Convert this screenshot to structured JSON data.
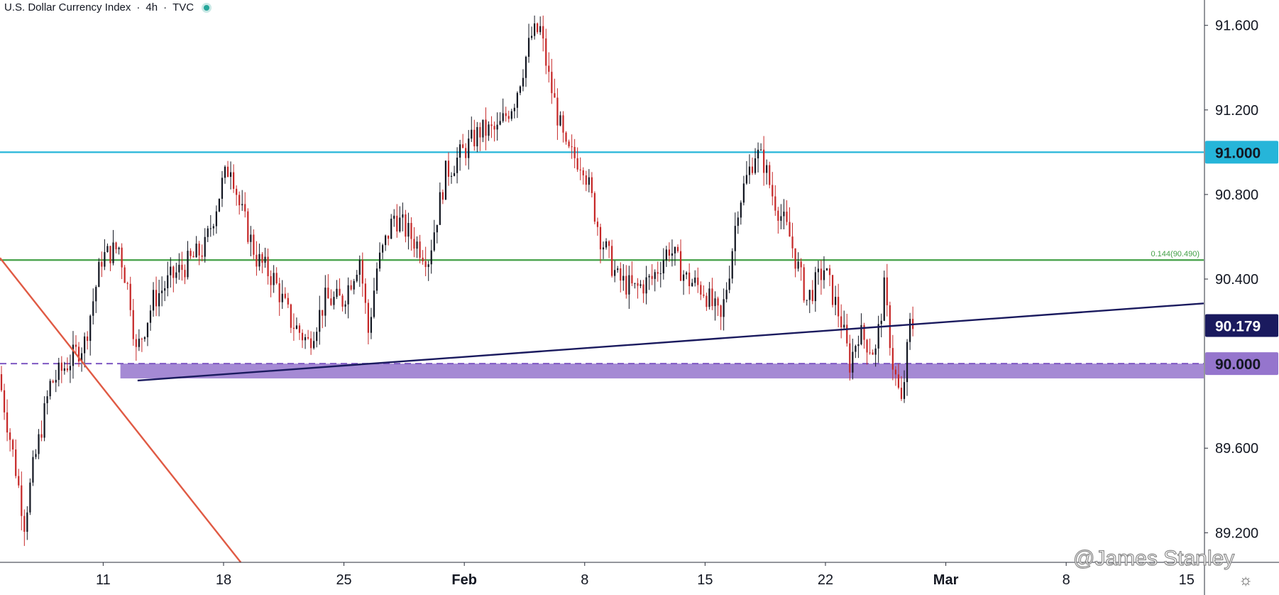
{
  "header": {
    "symbol": "U.S. Dollar Currency Index",
    "interval": "4h",
    "source": "TVC",
    "separator": "·",
    "status_color": "#26a69a"
  },
  "watermark": "@James Stanley",
  "settings_icon": "gear-icon",
  "chart_data": {
    "type": "candlestick",
    "title": "U.S. Dollar Currency Index · 4h · TVC",
    "xlabel": "",
    "ylabel": "",
    "x_range": [
      "2021-01-05",
      "2021-03-16"
    ],
    "ylim": [
      89.06,
      91.72
    ],
    "grid": false,
    "y_ticks": [
      "91.600",
      "91.200",
      "90.800",
      "90.400",
      "89.600",
      "89.200"
    ],
    "x_ticks": [
      {
        "label": "11",
        "date": "2021-01-11",
        "bold": false
      },
      {
        "label": "18",
        "date": "2021-01-18",
        "bold": false
      },
      {
        "label": "25",
        "date": "2021-01-25",
        "bold": false
      },
      {
        "label": "Feb",
        "date": "2021-02-01",
        "bold": true
      },
      {
        "label": "8",
        "date": "2021-02-08",
        "bold": false
      },
      {
        "label": "15",
        "date": "2021-02-15",
        "bold": false
      },
      {
        "label": "22",
        "date": "2021-02-22",
        "bold": false
      },
      {
        "label": "Mar",
        "date": "2021-03-01",
        "bold": true
      },
      {
        "label": "8",
        "date": "2021-03-08",
        "bold": false
      },
      {
        "label": "15",
        "date": "2021-03-15",
        "bold": false
      }
    ],
    "colors": {
      "up": "#131722",
      "down": "#c62828"
    },
    "price_path": [
      [
        "2021-01-05",
        89.95
      ],
      [
        "2021-01-06",
        89.5
      ],
      [
        "2021-01-06 12:00",
        89.25
      ],
      [
        "2021-01-07",
        89.5
      ],
      [
        "2021-01-08",
        89.9
      ],
      [
        "2021-01-10",
        90.1
      ],
      [
        "2021-01-11",
        90.5
      ],
      [
        "2021-01-12",
        90.55
      ],
      [
        "2021-01-12 16:00",
        90.3
      ],
      [
        "2021-01-13",
        90.05
      ],
      [
        "2021-01-14",
        90.3
      ],
      [
        "2021-01-15",
        90.4
      ],
      [
        "2021-01-17",
        90.55
      ],
      [
        "2021-01-18",
        90.85
      ],
      [
        "2021-01-18 12:00",
        90.95
      ],
      [
        "2021-01-19",
        90.75
      ],
      [
        "2021-01-20",
        90.5
      ],
      [
        "2021-01-21",
        90.4
      ],
      [
        "2021-01-22",
        90.2
      ],
      [
        "2021-01-23",
        90.1
      ],
      [
        "2021-01-24",
        90.3
      ],
      [
        "2021-01-25",
        90.3
      ],
      [
        "2021-01-26",
        90.5
      ],
      [
        "2021-01-26 12:00",
        90.15
      ],
      [
        "2021-01-27",
        90.45
      ],
      [
        "2021-01-28",
        90.7
      ],
      [
        "2021-01-29",
        90.6
      ],
      [
        "2021-01-30",
        90.5
      ],
      [
        "2021-01-31",
        90.9
      ],
      [
        "2021-02-01",
        91.0
      ],
      [
        "2021-02-02",
        91.1
      ],
      [
        "2021-02-03",
        91.1
      ],
      [
        "2021-02-04",
        91.25
      ],
      [
        "2021-02-05",
        91.55
      ],
      [
        "2021-02-05 12:00",
        91.58
      ],
      [
        "2021-02-06",
        91.35
      ],
      [
        "2021-02-07",
        91.0
      ],
      [
        "2021-02-08",
        90.95
      ],
      [
        "2021-02-09",
        90.6
      ],
      [
        "2021-02-10",
        90.4
      ],
      [
        "2021-02-11",
        90.35
      ],
      [
        "2021-02-12",
        90.4
      ],
      [
        "2021-02-13",
        90.55
      ],
      [
        "2021-02-14",
        90.4
      ],
      [
        "2021-02-15",
        90.35
      ],
      [
        "2021-02-16",
        90.2
      ],
      [
        "2021-02-16 12:00",
        90.45
      ],
      [
        "2021-02-17",
        90.75
      ],
      [
        "2021-02-18",
        91.0
      ],
      [
        "2021-02-18 12:00",
        90.95
      ],
      [
        "2021-02-19",
        90.8
      ],
      [
        "2021-02-20",
        90.6
      ],
      [
        "2021-02-21",
        90.3
      ],
      [
        "2021-02-22",
        90.45
      ],
      [
        "2021-02-23",
        90.2
      ],
      [
        "2021-02-23 12:00",
        90.0
      ],
      [
        "2021-02-24",
        90.15
      ],
      [
        "2021-02-25",
        90.05
      ],
      [
        "2021-02-25 12:00",
        90.35
      ],
      [
        "2021-02-26",
        90.0
      ],
      [
        "2021-02-26 12:00",
        89.8
      ],
      [
        "2021-02-27",
        90.18
      ]
    ],
    "price_levels": [
      {
        "price": 91.0,
        "label": "91.000",
        "color": "#26b5d9",
        "badge_bg": "#26b5d9",
        "badge_fg": "#131722",
        "line": "solid"
      },
      {
        "price": 90.49,
        "label": "0.144(90.490)",
        "color": "#43a047",
        "line": "solid",
        "badge": false
      },
      {
        "price": 90.0,
        "label": "90.000",
        "color": "#7e57c2",
        "badge_bg": "#9575cd",
        "badge_fg": "#131722",
        "line": "dashed"
      }
    ],
    "support_zone": {
      "from": "2021-01-12",
      "top": 90.0,
      "bottom": 89.93,
      "color": "#9575cd"
    },
    "trendline": {
      "from": [
        "2021-01-13",
        89.92
      ],
      "to": [
        "2021-03-16",
        90.285
      ],
      "color": "#1a1a5e",
      "label": "90.179",
      "badge_bg": "#1a1a5e",
      "badge_fg": "#ffffff"
    },
    "downtrend_line": {
      "from": [
        "2021-01-05",
        90.5
      ],
      "to": [
        "2021-01-19",
        89.06
      ],
      "color": "#e05a44"
    }
  }
}
